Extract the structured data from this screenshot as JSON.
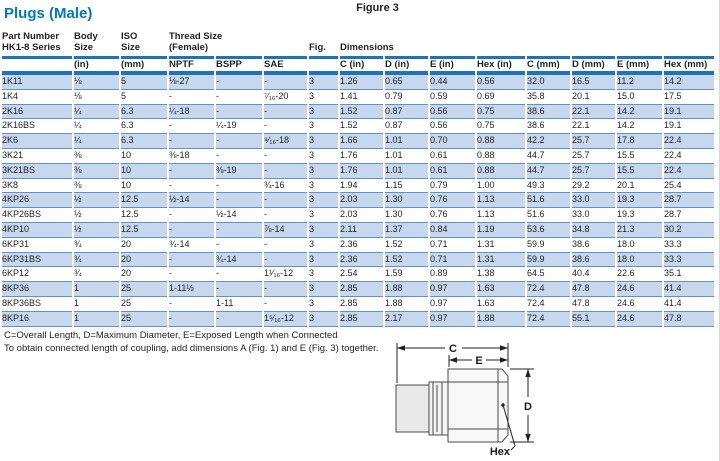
{
  "page": {
    "title": "Plugs (Male)",
    "figure_label": "Figure 3"
  },
  "colors": {
    "accent_blue": "#0077C8",
    "rule_blue": "#1C75BC",
    "row_shade": "#C7D8EE",
    "row_line": "#5D92CB",
    "text": "#231F20"
  },
  "table": {
    "group_headers": {
      "part_number": [
        "Part Number",
        "HK1-8 Series"
      ],
      "body_size": [
        "Body",
        "Size"
      ],
      "iso_size": [
        "ISO",
        "Size"
      ],
      "thread_size": [
        "Thread Size",
        "(Female)"
      ],
      "fig": "Fig.",
      "dimensions": "Dimensions"
    },
    "sub_headers": {
      "body_unit": "(in)",
      "iso_unit": "(mm)",
      "nptf": "NPTF",
      "bspp": "BSPP",
      "sae": "SAE",
      "c_in": "C (in)",
      "d_in": "D (in)",
      "e_in": "E (in)",
      "hex_in": "Hex (in)",
      "c_mm": "C (mm)",
      "d_mm": "D (mm)",
      "e_mm": "E (mm)",
      "hex_mm": "Hex (mm)"
    },
    "rows": [
      [
        "1K11",
        "⅛",
        "5",
        "⅛-27",
        "-",
        "-",
        "3",
        "1.26",
        "0.65",
        "0.44",
        "0.56",
        "32.0",
        "16.5",
        "11.2",
        "14.2"
      ],
      [
        "1K4",
        "⅛",
        "5",
        "-",
        "-",
        "⁷⁄₁₆-20",
        "3",
        "1.41",
        "0.79",
        "0.59",
        "0.69",
        "35.8",
        "20.1",
        "15.0",
        "17.5"
      ],
      [
        "2K16",
        "¼",
        "6.3",
        "¼-18",
        "-",
        "-",
        "3",
        "1.52",
        "0.87",
        "0.56",
        "0.75",
        "38.6",
        "22.1",
        "14.2",
        "19.1"
      ],
      [
        "2K16BS",
        "¼",
        "6.3",
        "-",
        "¼-19",
        "-",
        "3",
        "1.52",
        "0.87",
        "0.56",
        "0.75",
        "38.6",
        "22.1",
        "14.2",
        "19.1"
      ],
      [
        "2K6",
        "¼",
        "6.3",
        "-",
        "-",
        "⁹⁄₁₆-18",
        "3",
        "1.66",
        "1.01",
        "0.70",
        "0.88",
        "42.2",
        "25.7",
        "17.8",
        "22.4"
      ],
      [
        "3K21",
        "⅜",
        "10",
        "⅜-18",
        "-",
        "-",
        "3",
        "1.76",
        "1.01",
        "0.61",
        "0.88",
        "44.7",
        "25.7",
        "15.5",
        "22.4"
      ],
      [
        "3K21BS",
        "⅜",
        "10",
        "-",
        "⅜-19",
        "-",
        "3",
        "1.76",
        "1.01",
        "0.61",
        "0.88",
        "44.7",
        "25.7",
        "15.5",
        "22.4"
      ],
      [
        "3K8",
        "⅜",
        "10",
        "-",
        "-",
        "¾-16",
        "3",
        "1.94",
        "1.15",
        "0.79",
        "1.00",
        "49.3",
        "29.2",
        "20.1",
        "25.4"
      ],
      [
        "4KP26",
        "½",
        "12.5",
        "½-14",
        "-",
        "-",
        "3",
        "2.03",
        "1.30",
        "0.76",
        "1.13",
        "51.6",
        "33.0",
        "19.3",
        "28.7"
      ],
      [
        "4KP26BS",
        "½",
        "12.5",
        "-",
        "½-14",
        "-",
        "3",
        "2.03",
        "1.30",
        "0.76",
        "1.13",
        "51.6",
        "33.0",
        "19.3",
        "28.7"
      ],
      [
        "4KP10",
        "½",
        "12.5",
        "-",
        "-",
        "⅞-14",
        "3",
        "2.11",
        "1.37",
        "0.84",
        "1.19",
        "53.6",
        "34.8",
        "21.3",
        "30.2"
      ],
      [
        "6KP31",
        "¾",
        "20",
        "¾-14",
        "-",
        "-",
        "3",
        "2.36",
        "1.52",
        "0.71",
        "1.31",
        "59.9",
        "38.6",
        "18.0",
        "33.3"
      ],
      [
        "6KP31BS",
        "¾",
        "20",
        "-",
        "¾-14",
        "-",
        "3",
        "2.36",
        "1.52",
        "0.71",
        "1.31",
        "59.9",
        "38.6",
        "18.0",
        "33.3"
      ],
      [
        "6KP12",
        "¾",
        "20",
        "-",
        "-",
        "1¹⁄₁₆-12",
        "3",
        "2.54",
        "1.59",
        "0.89",
        "1.38",
        "64.5",
        "40.4",
        "22.6",
        "35.1"
      ],
      [
        "8KP36",
        "1",
        "25",
        "1-11½",
        "-",
        "-",
        "3",
        "2.85",
        "1.88",
        "0.97",
        "1.63",
        "72.4",
        "47.8",
        "24.6",
        "41.4"
      ],
      [
        "8KP36BS",
        "1",
        "25",
        "-",
        "1-11",
        "-",
        "3",
        "2.85",
        "1.88",
        "0.97",
        "1.63",
        "72.4",
        "47.8",
        "24.6",
        "41.4"
      ],
      [
        "8KP16",
        "1",
        "25",
        "-",
        "-",
        "1⁵⁄₁₆-12",
        "3",
        "2.85",
        "2.17",
        "0.97",
        "1.88",
        "72.4",
        "55.1",
        "24.6",
        "47.8"
      ]
    ]
  },
  "footnotes": {
    "line1": "C=Overall Length, D=Maximum Diameter, E=Exposed Length when Connected",
    "line2": "To obtain connected length of coupling, add dimensions A (Fig. 1) and E (Fig. 3) together."
  },
  "diagram": {
    "labels": {
      "c": "C",
      "e": "E",
      "d": "D",
      "hex": "Hex"
    }
  }
}
